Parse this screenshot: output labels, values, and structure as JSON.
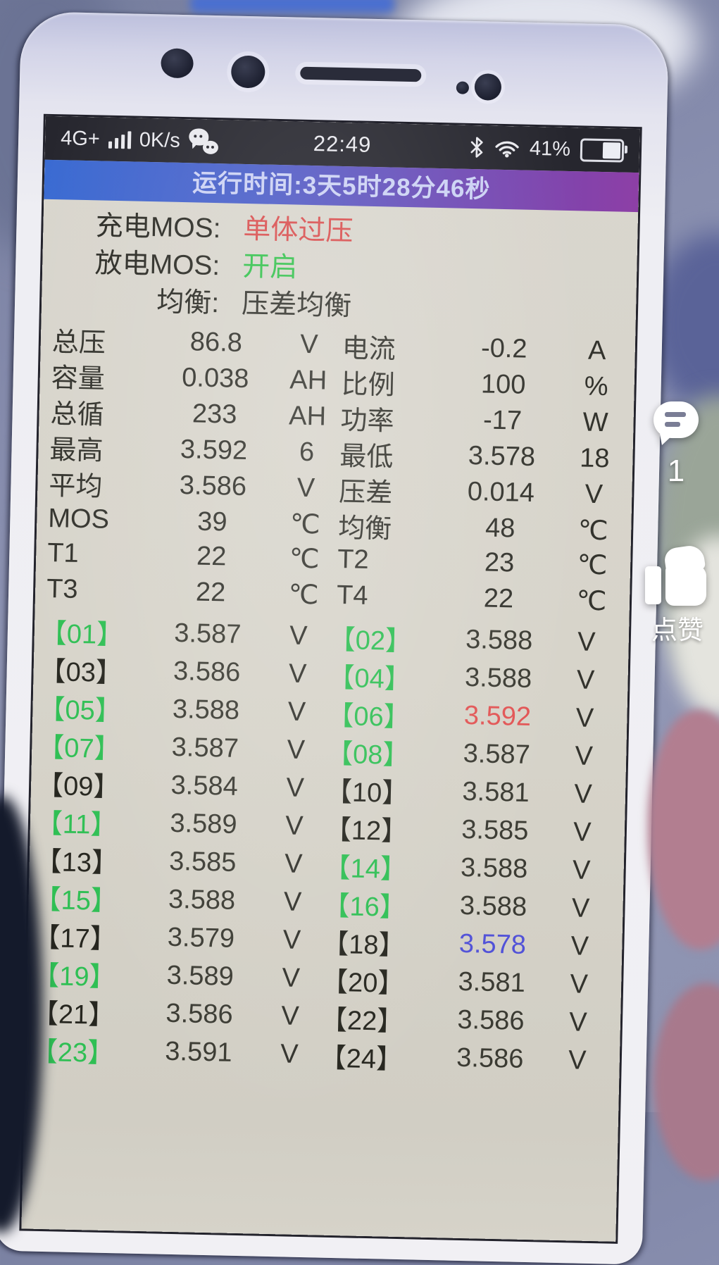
{
  "status_bar": {
    "network": "4G+",
    "speed": "0K/s",
    "time": "22:49",
    "battery_percent": "41%"
  },
  "banner": {
    "runtime_text": "运行时间:3天5时28分46秒"
  },
  "mos_status": {
    "rows": [
      {
        "label": "充电MOS:",
        "value": "单体过压",
        "value_color": "#d94f4f"
      },
      {
        "label": "放电MOS:",
        "value": "开启",
        "value_color": "#35c24e"
      },
      {
        "label": "均衡:",
        "value": "压差均衡",
        "value_color": "#33332d"
      }
    ]
  },
  "stats": {
    "rows": [
      {
        "left": {
          "label": "总压",
          "value": "86.8",
          "unit": "V"
        },
        "right": {
          "label": "电流",
          "value": "-0.2",
          "unit": "A"
        }
      },
      {
        "left": {
          "label": "容量",
          "value": "0.038",
          "unit": "AH"
        },
        "right": {
          "label": "比例",
          "value": "100",
          "unit": "%"
        }
      },
      {
        "left": {
          "label": "总循",
          "value": "233",
          "unit": "AH"
        },
        "right": {
          "label": "功率",
          "value": "-17",
          "unit": "W"
        }
      },
      {
        "left": {
          "label": "最高",
          "value": "3.592",
          "unit": "6"
        },
        "right": {
          "label": "最低",
          "value": "3.578",
          "unit": "18"
        }
      },
      {
        "left": {
          "label": "平均",
          "value": "3.586",
          "unit": "V"
        },
        "right": {
          "label": "压差",
          "value": "0.014",
          "unit": "V"
        }
      },
      {
        "left": {
          "label": "MOS",
          "value": "39",
          "unit": "℃"
        },
        "right": {
          "label": "均衡",
          "value": "48",
          "unit": "℃"
        }
      },
      {
        "left": {
          "label": "T1",
          "value": "22",
          "unit": "℃"
        },
        "right": {
          "label": "T2",
          "value": "23",
          "unit": "℃"
        }
      },
      {
        "left": {
          "label": "T3",
          "value": "22",
          "unit": "℃"
        },
        "right": {
          "label": "T4",
          "value": "22",
          "unit": "℃"
        }
      }
    ]
  },
  "cells": {
    "unit": "V",
    "items": [
      {
        "id": "【01】",
        "value": "3.587",
        "label_color": "#2fbf54",
        "value_color": "#3b3b33"
      },
      {
        "id": "【02】",
        "value": "3.588",
        "label_color": "#2fbf54",
        "value_color": "#3b3b33"
      },
      {
        "id": "【03】",
        "value": "3.586",
        "label_color": "#26261f",
        "value_color": "#3b3b33"
      },
      {
        "id": "【04】",
        "value": "3.588",
        "label_color": "#2fbf54",
        "value_color": "#3b3b33"
      },
      {
        "id": "【05】",
        "value": "3.588",
        "label_color": "#2fbf54",
        "value_color": "#3b3b33"
      },
      {
        "id": "【06】",
        "value": "3.592",
        "label_color": "#2fbf54",
        "value_color": "#e25555"
      },
      {
        "id": "【07】",
        "value": "3.587",
        "label_color": "#2fbf54",
        "value_color": "#3b3b33"
      },
      {
        "id": "【08】",
        "value": "3.587",
        "label_color": "#2fbf54",
        "value_color": "#3b3b33"
      },
      {
        "id": "【09】",
        "value": "3.584",
        "label_color": "#26261f",
        "value_color": "#3b3b33"
      },
      {
        "id": "【10】",
        "value": "3.581",
        "label_color": "#26261f",
        "value_color": "#3b3b33"
      },
      {
        "id": "【11】",
        "value": "3.589",
        "label_color": "#2fbf54",
        "value_color": "#3b3b33"
      },
      {
        "id": "【12】",
        "value": "3.585",
        "label_color": "#26261f",
        "value_color": "#3b3b33"
      },
      {
        "id": "【13】",
        "value": "3.585",
        "label_color": "#26261f",
        "value_color": "#3b3b33"
      },
      {
        "id": "【14】",
        "value": "3.588",
        "label_color": "#2fbf54",
        "value_color": "#3b3b33"
      },
      {
        "id": "【15】",
        "value": "3.588",
        "label_color": "#2fbf54",
        "value_color": "#3b3b33"
      },
      {
        "id": "【16】",
        "value": "3.588",
        "label_color": "#2fbf54",
        "value_color": "#3b3b33"
      },
      {
        "id": "【17】",
        "value": "3.579",
        "label_color": "#26261f",
        "value_color": "#3b3b33"
      },
      {
        "id": "【18】",
        "value": "3.578",
        "label_color": "#26261f",
        "value_color": "#5252d8"
      },
      {
        "id": "【19】",
        "value": "3.589",
        "label_color": "#2fbf54",
        "value_color": "#3b3b33"
      },
      {
        "id": "【20】",
        "value": "3.581",
        "label_color": "#26261f",
        "value_color": "#3b3b33"
      },
      {
        "id": "【21】",
        "value": "3.586",
        "label_color": "#26261f",
        "value_color": "#3b3b33"
      },
      {
        "id": "【22】",
        "value": "3.586",
        "label_color": "#26261f",
        "value_color": "#3b3b33"
      },
      {
        "id": "【23】",
        "value": "3.591",
        "label_color": "#2fbf54",
        "value_color": "#3b3b33"
      },
      {
        "id": "【24】",
        "value": "3.586",
        "label_color": "#26261f",
        "value_color": "#3b3b33"
      }
    ]
  },
  "overlay": {
    "comment_count": "1",
    "like_label": "点赞"
  },
  "colors": {
    "alert_red": "#d94f4f",
    "ok_green": "#35c24e",
    "cell_green": "#2fbf54",
    "low_blue": "#5252d8",
    "banner_blue": "#3a6bd2",
    "banner_purple": "#8d3fa6",
    "statusbar_bg": "#26262e",
    "screen_bg": "#d7d4ca"
  }
}
